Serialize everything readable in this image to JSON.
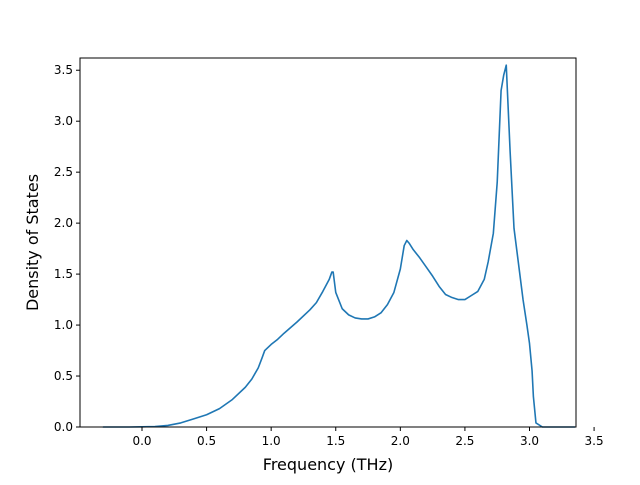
{
  "chart_data": {
    "type": "line",
    "title": "",
    "xlabel": "Frequency (THz)",
    "ylabel": "Density of States",
    "xlim": [
      -0.48,
      3.36
    ],
    "ylim": [
      0.0,
      3.62
    ],
    "xticks": [
      0.0,
      0.5,
      1.0,
      1.5,
      2.0,
      2.5,
      3.0,
      3.5
    ],
    "xtick_labels": [
      "0.0",
      "0.5",
      "1.0",
      "1.5",
      "2.0",
      "2.5",
      "3.0",
      "3.5"
    ],
    "yticks": [
      0.0,
      0.5,
      1.0,
      1.5,
      2.0,
      2.5,
      3.0,
      3.5
    ],
    "ytick_labels": [
      "0.0",
      "0.5",
      "1.0",
      "1.5",
      "2.0",
      "2.5",
      "3.0",
      "3.5"
    ],
    "grid": false,
    "line_color": "#1f77b4",
    "series": [
      {
        "x": [
          -0.3,
          -0.1,
          0.0,
          0.1,
          0.2,
          0.3,
          0.4,
          0.5,
          0.6,
          0.7,
          0.8,
          0.85,
          0.9,
          0.93,
          0.95,
          1.0,
          1.05,
          1.1,
          1.2,
          1.3,
          1.35,
          1.4,
          1.45,
          1.47,
          1.48,
          1.5,
          1.55,
          1.6,
          1.65,
          1.7,
          1.75,
          1.8,
          1.85,
          1.9,
          1.95,
          2.0,
          2.03,
          2.05,
          2.07,
          2.1,
          2.15,
          2.2,
          2.25,
          2.3,
          2.35,
          2.4,
          2.45,
          2.5,
          2.55,
          2.6,
          2.65,
          2.68,
          2.72,
          2.75,
          2.78,
          2.8,
          2.82,
          2.85,
          2.88,
          2.92,
          2.95,
          2.98,
          3.0,
          3.02,
          3.03,
          3.05,
          3.1,
          3.2,
          3.35
        ],
        "y": [
          0.0,
          0.0,
          0.002,
          0.005,
          0.015,
          0.04,
          0.08,
          0.12,
          0.18,
          0.27,
          0.39,
          0.47,
          0.58,
          0.68,
          0.75,
          0.81,
          0.86,
          0.92,
          1.03,
          1.15,
          1.22,
          1.33,
          1.45,
          1.52,
          1.52,
          1.32,
          1.16,
          1.1,
          1.07,
          1.06,
          1.06,
          1.08,
          1.12,
          1.2,
          1.32,
          1.55,
          1.78,
          1.83,
          1.8,
          1.74,
          1.66,
          1.57,
          1.48,
          1.38,
          1.3,
          1.27,
          1.25,
          1.25,
          1.29,
          1.33,
          1.45,
          1.62,
          1.9,
          2.4,
          3.3,
          3.45,
          3.55,
          2.7,
          1.95,
          1.55,
          1.25,
          1.0,
          0.82,
          0.55,
          0.3,
          0.04,
          0.0,
          0.0,
          0.0
        ]
      }
    ]
  }
}
